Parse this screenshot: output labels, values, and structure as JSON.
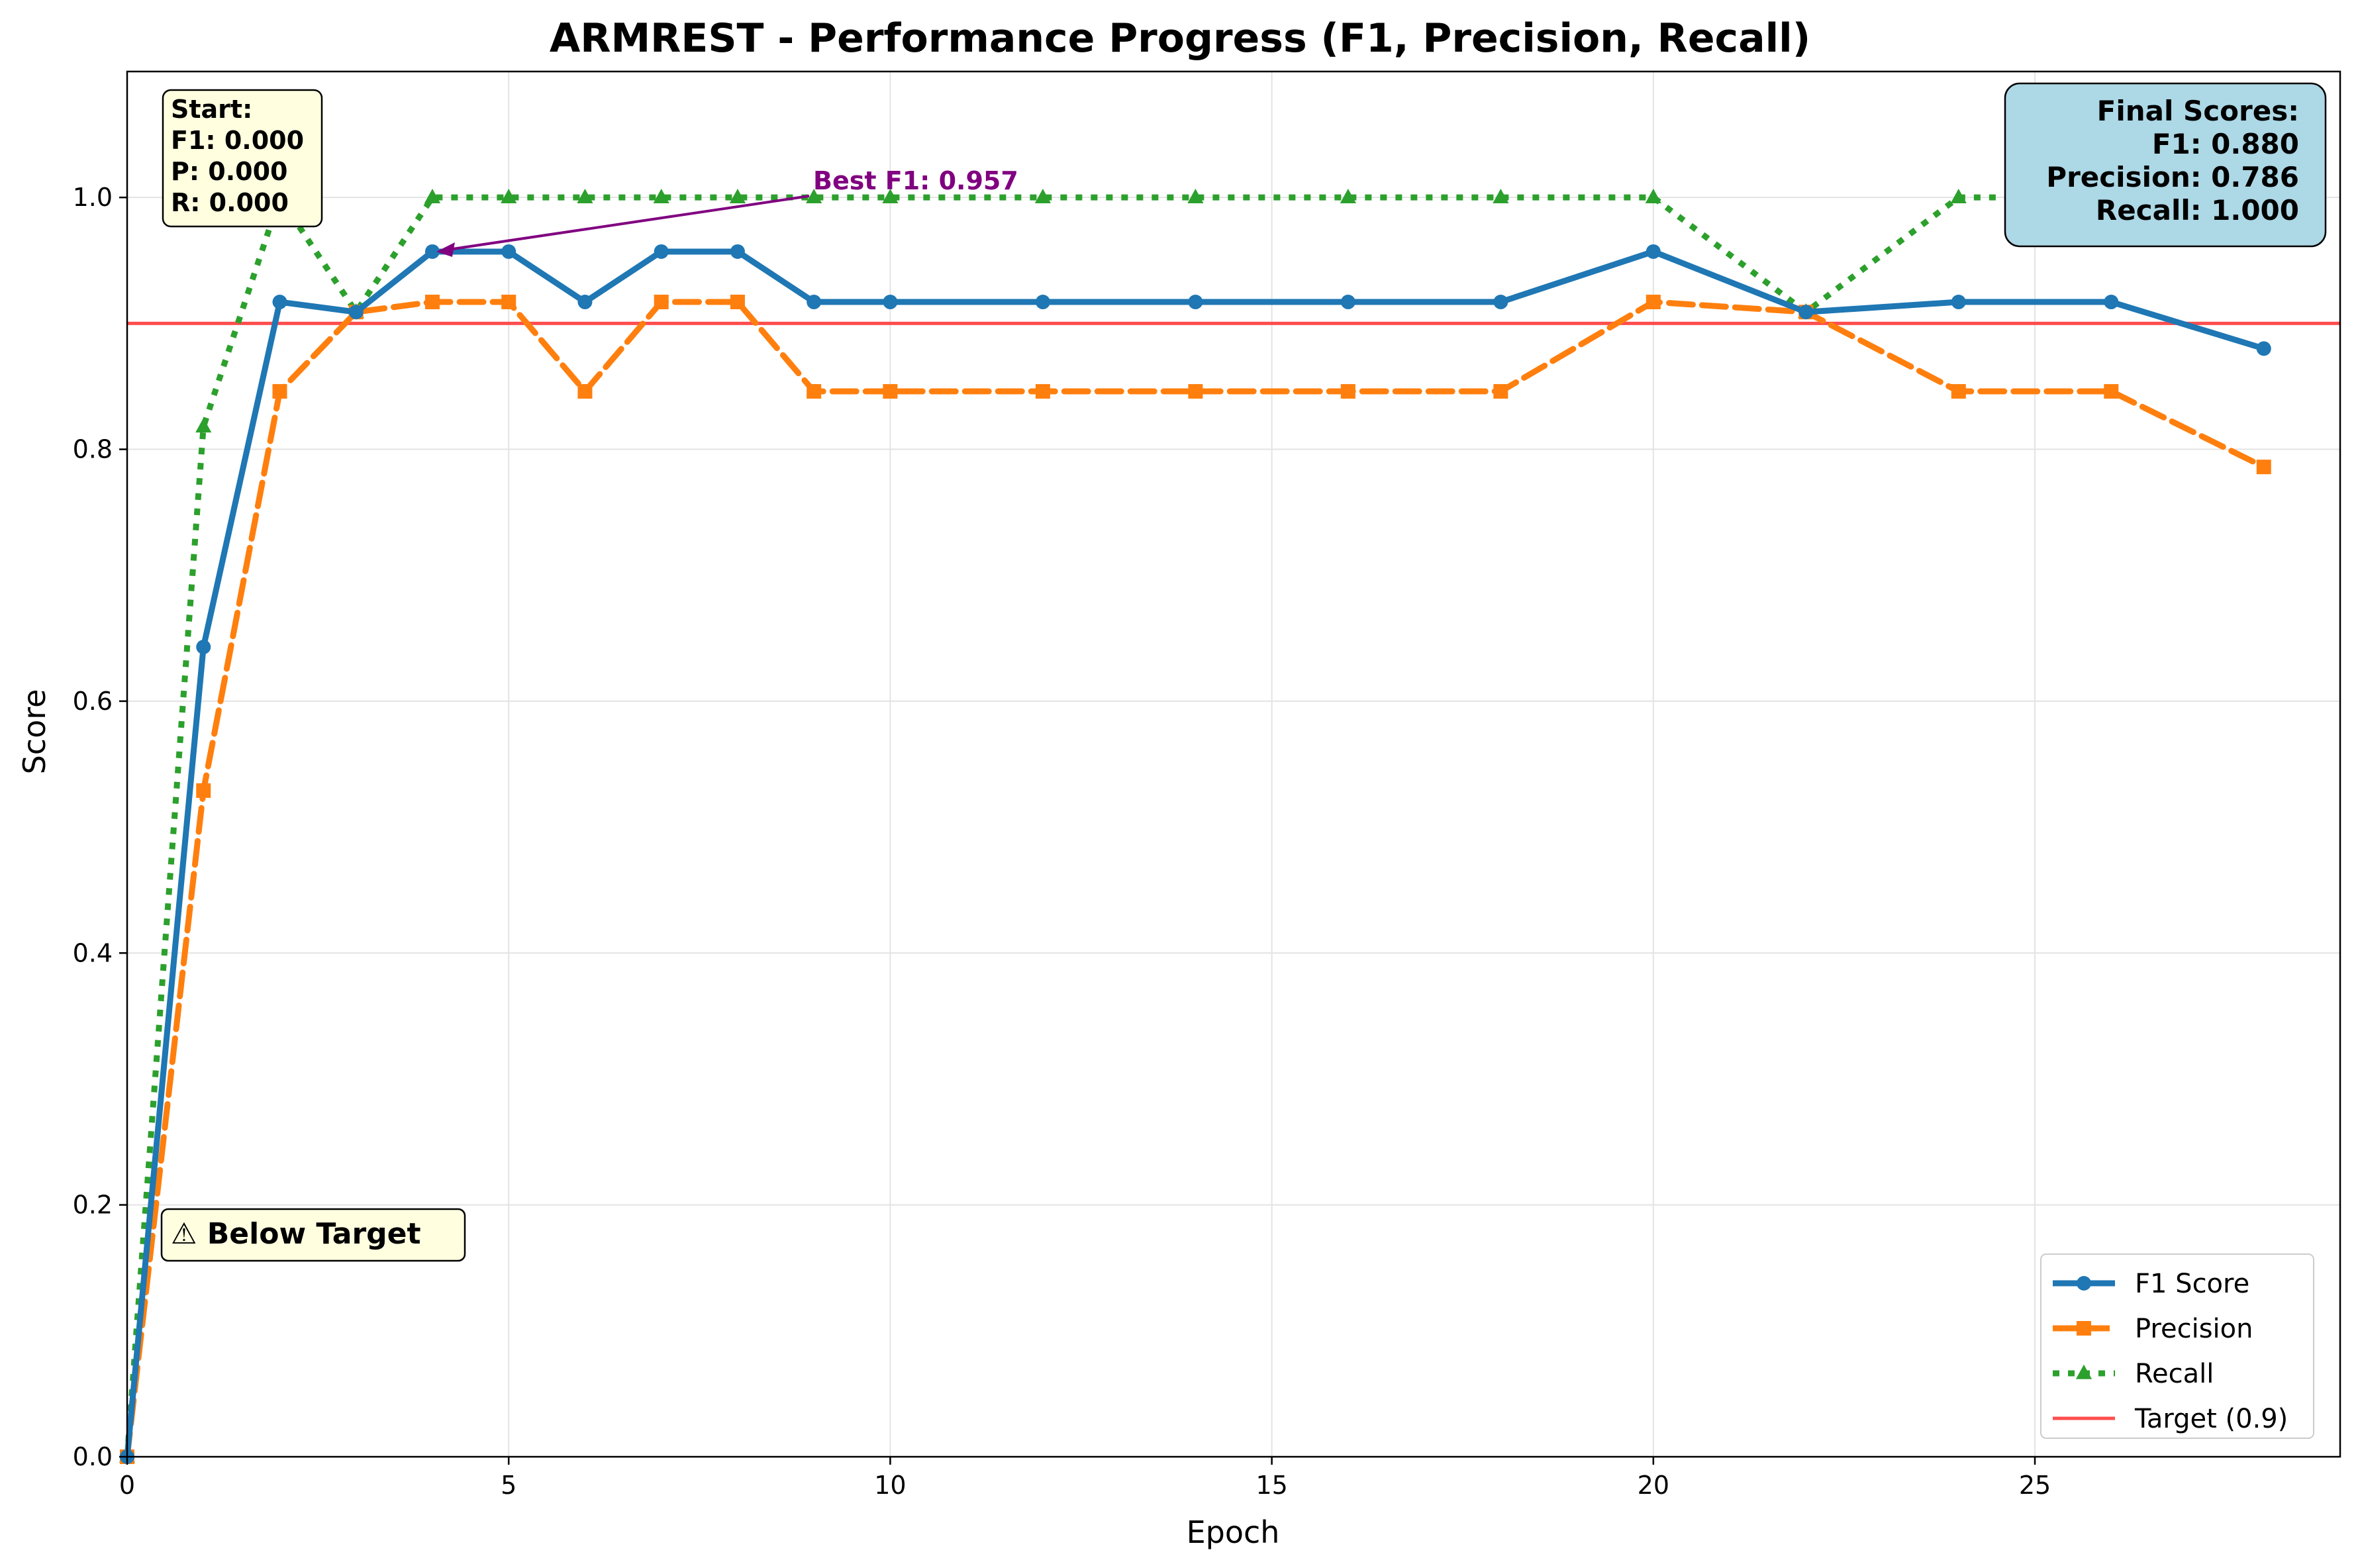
{
  "chart_data": {
    "type": "line",
    "title": "ARMREST - Performance Progress (F1, Precision, Recall)",
    "xlabel": "Epoch",
    "ylabel": "Score",
    "xlim": [
      0,
      29
    ],
    "ylim": [
      0,
      1.1
    ],
    "xticks": [
      0,
      5,
      10,
      15,
      20,
      25
    ],
    "yticks": [
      0.0,
      0.2,
      0.4,
      0.6,
      0.8,
      1.0
    ],
    "grid": true,
    "legend_position": "bottom-right",
    "x": [
      0,
      1,
      2,
      3,
      4,
      5,
      6,
      7,
      8,
      9,
      10,
      12,
      14,
      16,
      18,
      20,
      22,
      24,
      26,
      28
    ],
    "series": [
      {
        "name": "F1 Score",
        "color": "#1f77b4",
        "style": "solid",
        "marker": "circle",
        "values": [
          0.0,
          0.643,
          0.917,
          0.909,
          0.957,
          0.957,
          0.917,
          0.957,
          0.957,
          0.917,
          0.917,
          0.917,
          0.917,
          0.917,
          0.917,
          0.957,
          0.909,
          0.917,
          0.917,
          0.88
        ]
      },
      {
        "name": "Precision",
        "color": "#ff7f0e",
        "style": "dashed",
        "marker": "square",
        "values": [
          0.0,
          0.529,
          0.846,
          0.909,
          0.917,
          0.917,
          0.846,
          0.917,
          0.917,
          0.846,
          0.846,
          0.846,
          0.846,
          0.846,
          0.846,
          0.917,
          0.909,
          0.846,
          0.846,
          0.786
        ]
      },
      {
        "name": "Recall",
        "color": "#2ca02c",
        "style": "dotted",
        "marker": "triangle",
        "values": [
          0.0,
          0.818,
          1.0,
          0.909,
          1.0,
          1.0,
          1.0,
          1.0,
          1.0,
          1.0,
          1.0,
          1.0,
          1.0,
          1.0,
          1.0,
          1.0,
          0.909,
          1.0,
          1.0,
          1.0
        ]
      }
    ],
    "target": {
      "label": "Target (0.9)",
      "value": 0.9,
      "color": "#ff4d4d"
    },
    "annotations": {
      "start": [
        "Start:",
        "F1: 0.000",
        "P: 0.000",
        "R: 0.000"
      ],
      "final": [
        "Final Scores:",
        "F1: 0.880",
        "Precision: 0.786",
        "Recall: 1.000"
      ],
      "best": {
        "text": "Best F1: 0.957",
        "epoch": 4,
        "value": 0.957,
        "color": "#800080"
      },
      "warning": "⚠ Below Target"
    }
  }
}
